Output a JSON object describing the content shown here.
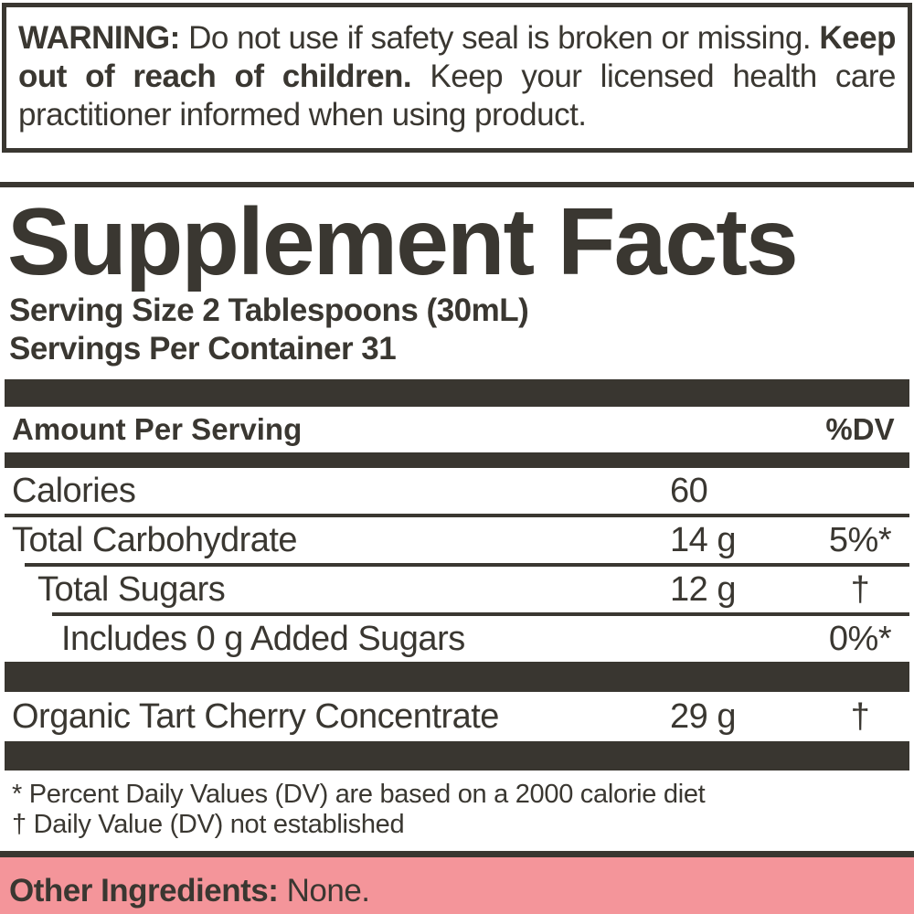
{
  "colors": {
    "ink": "#3a3731",
    "bar": "#393630",
    "pink": "#f4959a"
  },
  "warning": {
    "label": "WARNING:",
    "text_1": "Do not use if safety seal is broken or missing.",
    "bold_2": "Keep out of reach of children.",
    "text_2": "Keep your licensed health care practitioner informed when using product."
  },
  "panel": {
    "title": "Supplement Facts",
    "serving_size": "Serving Size 2 Tablespoons (30mL)",
    "servings_per_container": "Servings Per Container 31",
    "header": {
      "amount_label": "Amount Per Serving",
      "dv_label": "%DV"
    },
    "rows": [
      {
        "name": "Calories",
        "amount": "60",
        "dv": ""
      },
      {
        "name": "Total Carbohydrate",
        "amount": "14 g",
        "dv": "5%*"
      },
      {
        "name": "Total Sugars",
        "amount": "12 g",
        "dv": "†"
      },
      {
        "name": "Includes 0 g Added Sugars",
        "amount": "",
        "dv": "0%*"
      },
      {
        "name": "Organic Tart Cherry Concentrate",
        "amount": "29 g",
        "dv": "†"
      }
    ],
    "footnotes": [
      "* Percent Daily Values (DV) are based on a 2000 calorie diet",
      "† Daily Value (DV) not established"
    ]
  },
  "footer": {
    "label": "Other Ingredients:",
    "value": "None."
  }
}
